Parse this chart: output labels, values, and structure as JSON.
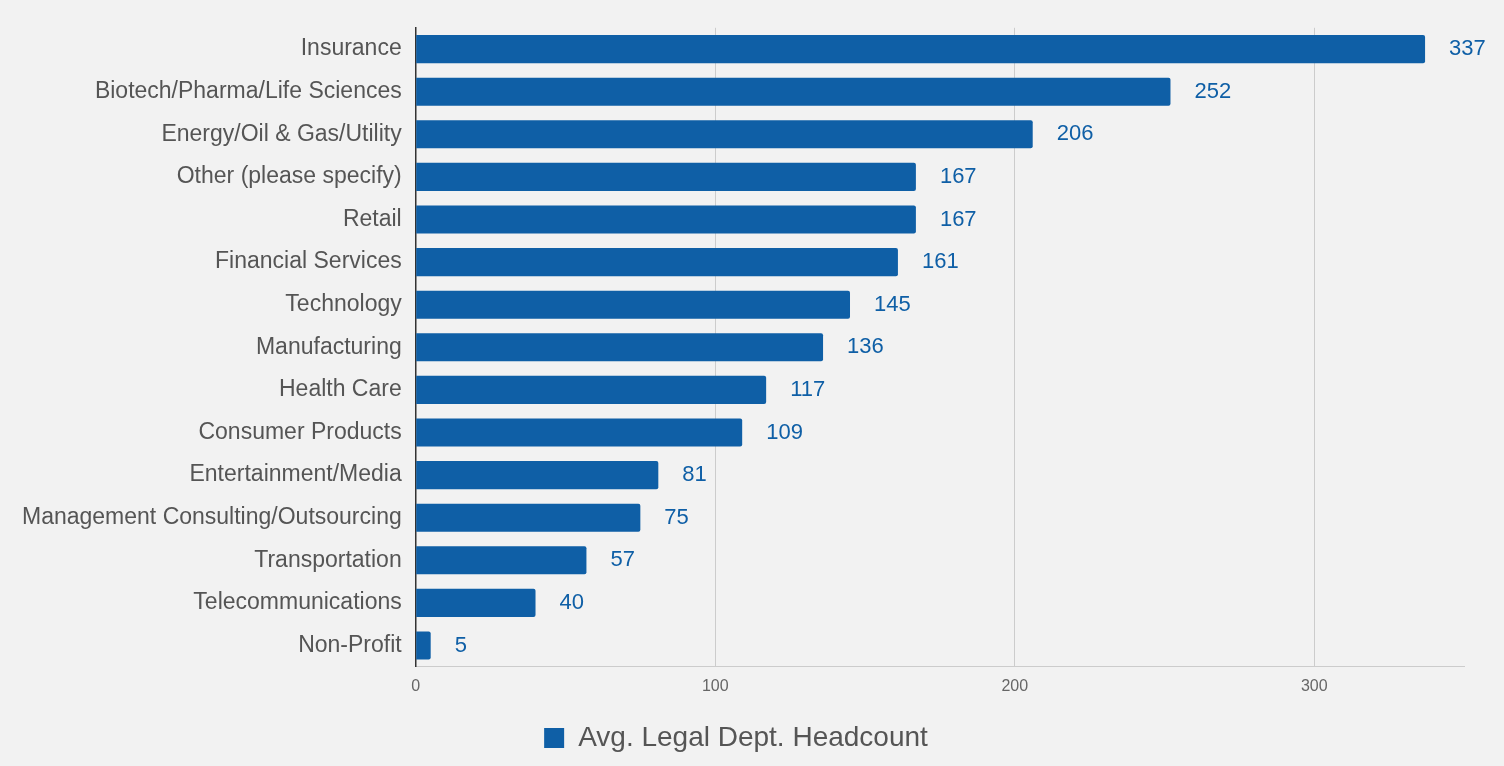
{
  "chart_data": {
    "type": "bar",
    "orientation": "horizontal",
    "categories": [
      "Insurance",
      "Biotech/Pharma/Life Sciences",
      "Energy/Oil & Gas/Utility",
      "Other (please specify)",
      "Retail",
      "Financial Services",
      "Technology",
      "Manufacturing",
      "Health Care",
      "Consumer Products",
      "Entertainment/Media",
      "Management Consulting/Outsourcing",
      "Transportation",
      "Telecommunications",
      "Non-Profit"
    ],
    "series": [
      {
        "name": "Avg. Legal Dept. Headcount",
        "color": "#0f5fa6",
        "values": [
          337,
          252,
          206,
          167,
          167,
          161,
          145,
          136,
          117,
          109,
          81,
          75,
          57,
          40,
          5
        ]
      }
    ],
    "xlim": [
      0,
      350
    ],
    "xticks": [
      0,
      100,
      200,
      300
    ],
    "grid": "x",
    "legend": "bottom",
    "data_labels": true
  }
}
